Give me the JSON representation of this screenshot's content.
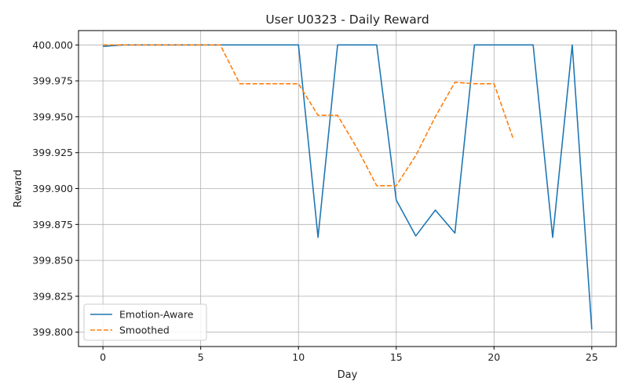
{
  "chart_data": {
    "type": "line",
    "title": "User U0323 - Daily Reward",
    "xlabel": "Day",
    "ylabel": "Reward",
    "xlim": [
      -1.25,
      26.25
    ],
    "ylim": [
      399.79,
      400.01
    ],
    "xticks": [
      0,
      5,
      10,
      15,
      20,
      25
    ],
    "yticks": [
      399.8,
      399.825,
      399.85,
      399.875,
      399.9,
      399.925,
      399.95,
      399.975,
      400.0
    ],
    "ytick_labels": [
      "399.800",
      "399.825",
      "399.850",
      "399.875",
      "399.900",
      "399.925",
      "399.950",
      "399.975",
      "400.000"
    ],
    "grid": true,
    "legend_position": "lower-left",
    "series": [
      {
        "name": "Emotion-Aware",
        "color": "#1f77b4",
        "style": "solid",
        "x": [
          0,
          1,
          2,
          3,
          4,
          5,
          6,
          7,
          8,
          9,
          10,
          11,
          12,
          13,
          14,
          15,
          16,
          17,
          18,
          19,
          20,
          21,
          22,
          23,
          24,
          25
        ],
        "y": [
          399.999,
          400.0,
          400.0,
          400.0,
          400.0,
          400.0,
          400.0,
          400.0,
          400.0,
          400.0,
          400.0,
          399.866,
          400.0,
          400.0,
          400.0,
          399.892,
          399.867,
          399.885,
          399.869,
          400.0,
          400.0,
          400.0,
          400.0,
          399.866,
          400.0,
          399.802
        ]
      },
      {
        "name": "Smoothed",
        "color": "#ff7f0e",
        "style": "dashed",
        "x": [
          0,
          1,
          2,
          3,
          4,
          5,
          6,
          7,
          8,
          9,
          10,
          11,
          12,
          13,
          14,
          15,
          16,
          17,
          18,
          19,
          20,
          21
        ],
        "y": [
          400.0,
          400.0,
          400.0,
          400.0,
          400.0,
          400.0,
          400.0,
          399.973,
          399.973,
          399.973,
          399.973,
          399.951,
          399.951,
          399.928,
          399.902,
          399.902,
          399.923,
          399.95,
          399.974,
          399.973,
          399.973,
          399.934
        ]
      }
    ]
  }
}
